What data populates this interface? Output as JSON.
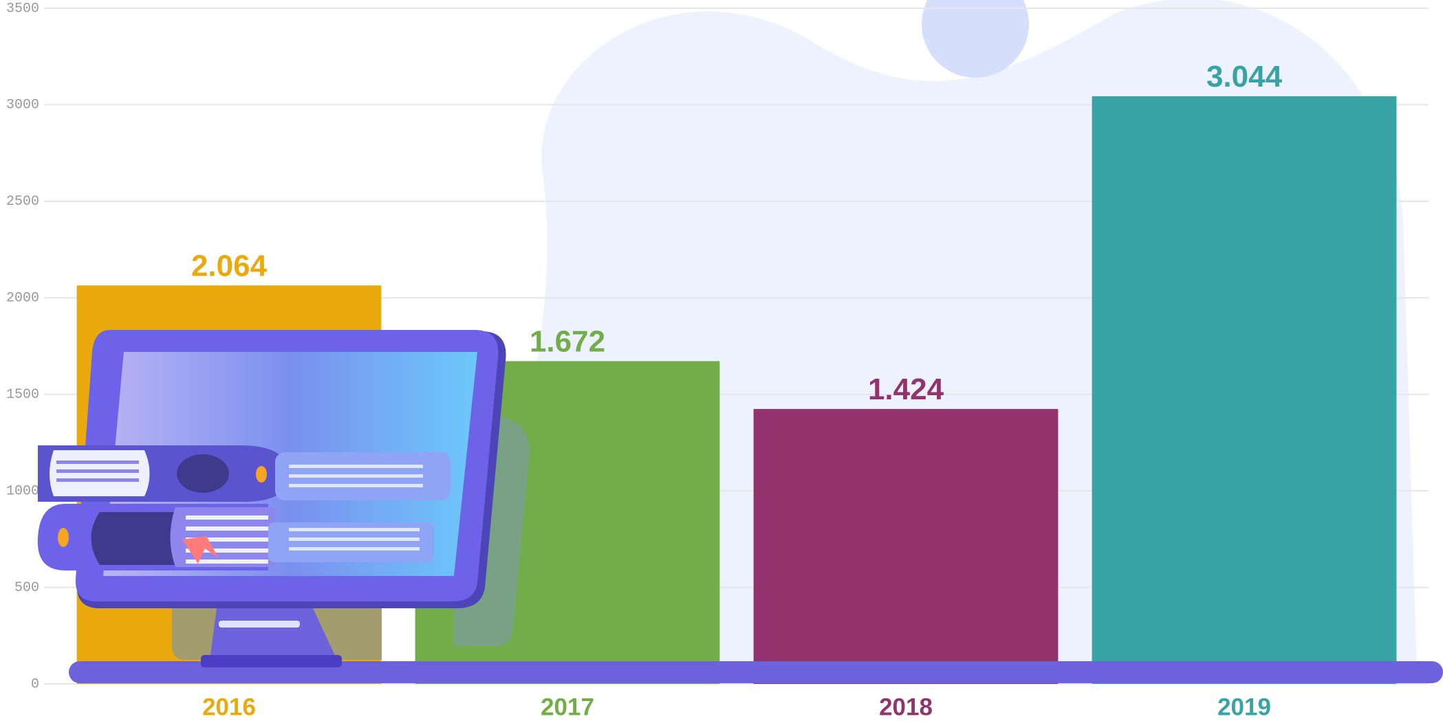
{
  "chart_data": {
    "type": "bar",
    "categories": [
      "2016",
      "2017",
      "2018",
      "2019"
    ],
    "values": [
      2064,
      1672,
      1424,
      3044
    ],
    "value_labels": [
      "2.064",
      "1.672",
      "1.424",
      "3.044"
    ],
    "colors": [
      "#eaaa0d",
      "#72ad49",
      "#93336e",
      "#38a3a5"
    ],
    "ylim": [
      0,
      3500
    ],
    "yticks": [
      0,
      500,
      1000,
      1500,
      2000,
      2500,
      3000,
      3500
    ],
    "grid": true
  }
}
